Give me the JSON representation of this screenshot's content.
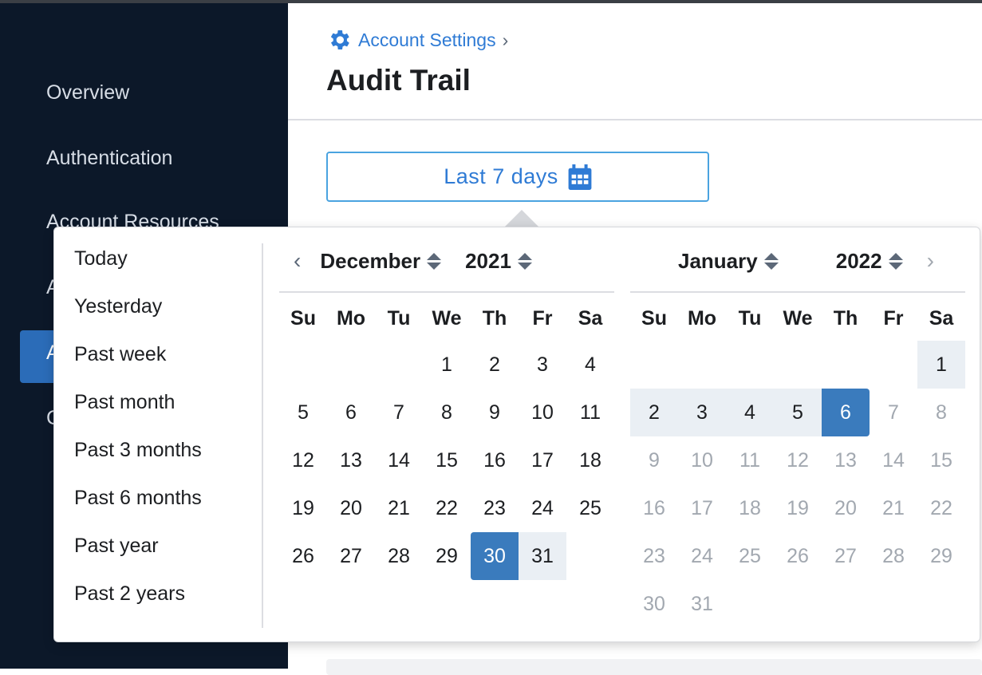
{
  "sidebar": {
    "items": [
      {
        "label": "Overview"
      },
      {
        "label": "Authentication"
      },
      {
        "label": "Account Resources"
      },
      {
        "label": "A"
      },
      {
        "label": "A"
      },
      {
        "label": "C"
      }
    ],
    "active_index": 4
  },
  "breadcrumb": {
    "label": "Account Settings",
    "separator": "›",
    "icon": "gear-icon"
  },
  "page": {
    "title": "Audit Trail"
  },
  "date_range_button": {
    "label": "Last 7 days",
    "icon": "calendar-icon"
  },
  "presets": [
    "Today",
    "Yesterday",
    "Past week",
    "Past month",
    "Past 3 months",
    "Past 6 months",
    "Past year",
    "Past 2 years"
  ],
  "weekdays": [
    "Su",
    "Mo",
    "Tu",
    "We",
    "Th",
    "Fr",
    "Sa"
  ],
  "calendars": [
    {
      "month": "December",
      "year": "2021",
      "weeks": [
        [
          null,
          null,
          null,
          1,
          2,
          3,
          4
        ],
        [
          5,
          6,
          7,
          8,
          9,
          10,
          11
        ],
        [
          12,
          13,
          14,
          15,
          16,
          17,
          18
        ],
        [
          19,
          20,
          21,
          22,
          23,
          24,
          25
        ],
        [
          26,
          27,
          28,
          29,
          30,
          31,
          null
        ]
      ],
      "selected": [
        30
      ],
      "in_range": [
        31
      ],
      "disabled_from": null
    },
    {
      "month": "January",
      "year": "2022",
      "weeks": [
        [
          null,
          null,
          null,
          null,
          null,
          null,
          1
        ],
        [
          2,
          3,
          4,
          5,
          6,
          7,
          8
        ],
        [
          9,
          10,
          11,
          12,
          13,
          14,
          15
        ],
        [
          16,
          17,
          18,
          19,
          20,
          21,
          22
        ],
        [
          23,
          24,
          25,
          26,
          27,
          28,
          29
        ],
        [
          30,
          31,
          null,
          null,
          null,
          null,
          null
        ]
      ],
      "selected": [
        6
      ],
      "in_range": [
        1,
        2,
        3,
        4,
        5
      ],
      "disabled_from": 7
    }
  ],
  "colors": {
    "accent": "#2f7bd5",
    "selected": "#3a7bbd",
    "range": "#eaeff4",
    "sidebar": "#0c1829"
  }
}
